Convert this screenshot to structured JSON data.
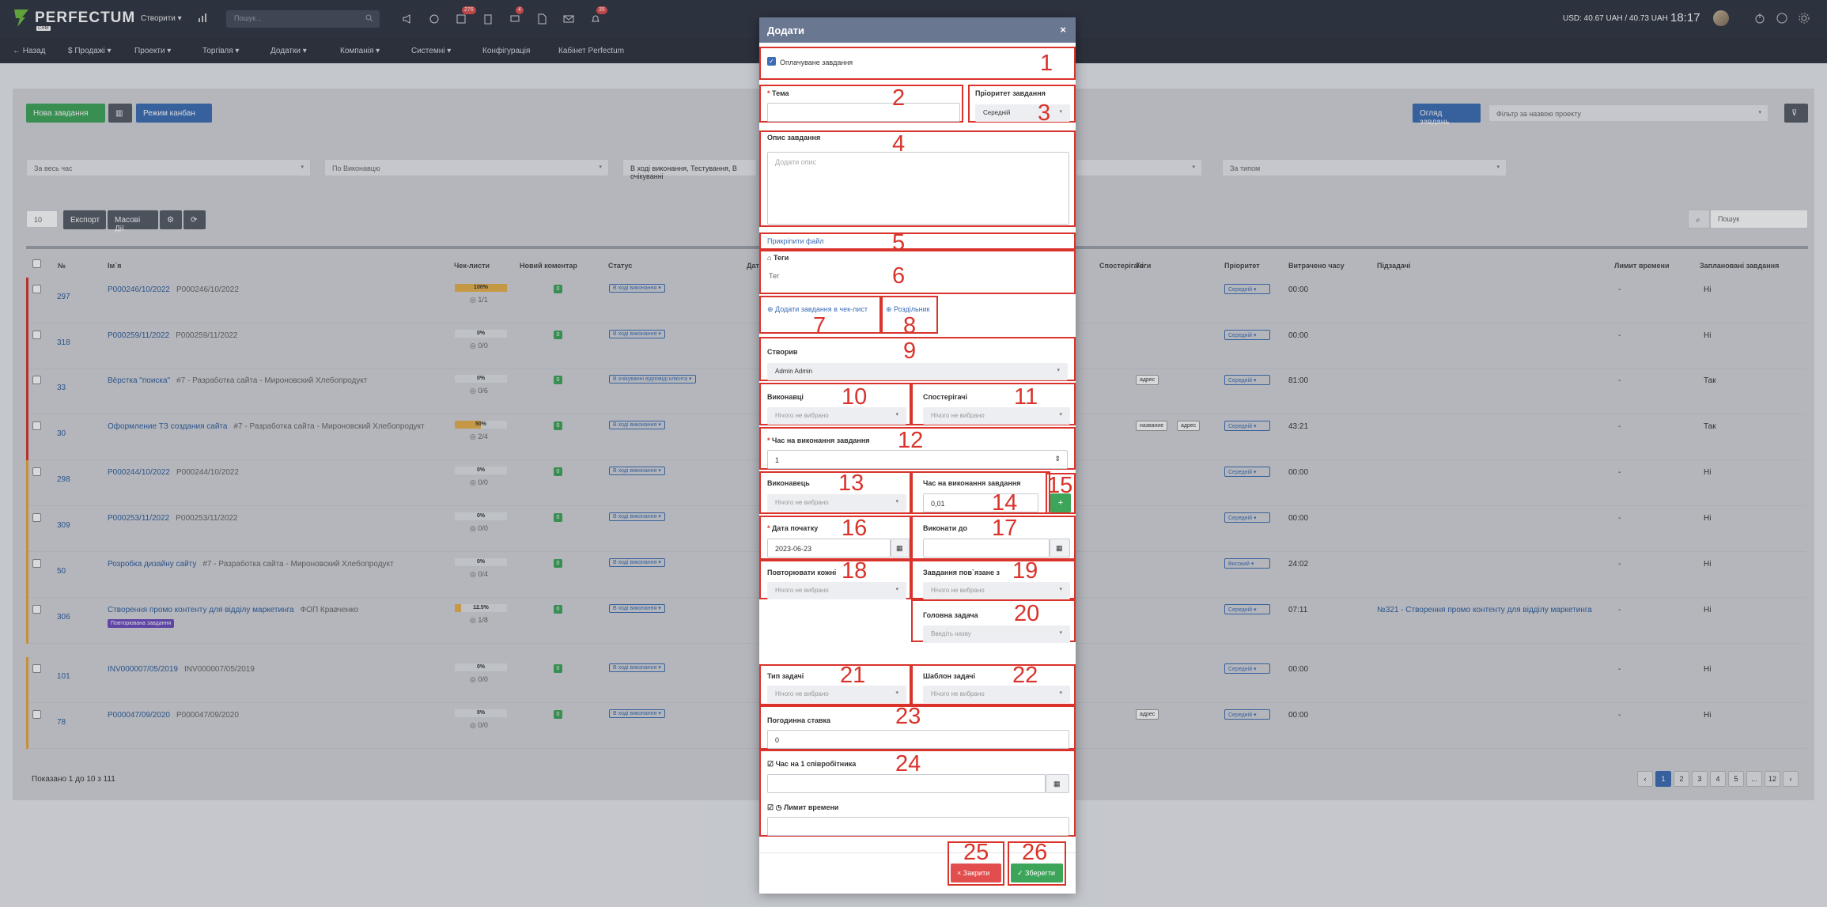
{
  "topbar": {
    "logo": "PERFECTUM",
    "logo_sub": "CRM",
    "create": "Створити ▾",
    "search_placeholder": "Пошук...",
    "badges": [
      "276",
      "4",
      "35"
    ],
    "currency": "USD: 40.67 UAH / 40.73 UAH",
    "clock": "18:17"
  },
  "nav": {
    "back": "← Назад",
    "items": [
      "$ Продажі ▾",
      "Проекти ▾",
      "Торгівля ▾",
      "Додатки ▾",
      "Компанія ▾",
      "Системні ▾",
      "Конфігурація",
      "Кабінет Perfectum"
    ]
  },
  "toolbar": {
    "new_task": "Нова завдання",
    "kanban": "Режим канбан",
    "overview": "Огляд завдань",
    "project_filter": "Фільтр за назвою проекту"
  },
  "filters": [
    "За весь час",
    "По Виконавцю",
    "В ході виконання, Тестування, В очікуванні",
    "За типом"
  ],
  "table_controls": {
    "per_page": "10",
    "export": "Експорт",
    "mass": "Масові Дії",
    "search": "Пошук"
  },
  "columns": [
    "№",
    "Ім`я",
    "Чек-листи",
    "Новий коментар",
    "Статус",
    "Дата",
    "Спостерігачі",
    "Теги",
    "Пріоритет",
    "Витрачено часу",
    "Підзадачі",
    "Лимит времени",
    "Заплановані завдання"
  ],
  "rows": [
    {
      "num": "297",
      "name": "P000246/10/2022",
      "sub": "P000246/10/2022",
      "progress": "100%",
      "check": "1/1",
      "status": "В ході виконання",
      "priority": "Середній",
      "spent": "00:00",
      "limit": "-",
      "planned": "Ні",
      "color": "#d9332b"
    },
    {
      "num": "318",
      "name": "P000259/11/2022",
      "sub": "P000259/11/2022",
      "progress": "0%",
      "check": "0/0",
      "status": "В ході виконання",
      "priority": "Середній",
      "spent": "00:00",
      "limit": "-",
      "planned": "Ні",
      "color": "#d9332b"
    },
    {
      "num": "33",
      "name": "Вёрстка \"поиска\"",
      "sub": "#7 - Разработка сайта - Мироновский Хлебопродукт",
      "progress": "0%",
      "check": "0/6",
      "status": "В очікуванні відповіді клієнта",
      "priority": "Середній",
      "spent": "81:00",
      "limit": "-",
      "planned": "Так",
      "color": "#d9332b",
      "tags": [
        "адрес"
      ]
    },
    {
      "num": "30",
      "name": "Оформление ТЗ создания сайта",
      "sub": "#7 - Разработка сайта - Мироновский Хлебопродукт",
      "progress": "50%",
      "check": "2/4",
      "status": "В ході виконання",
      "priority": "Середній",
      "spent": "43:21",
      "limit": "-",
      "planned": "Так",
      "color": "#d9332b",
      "tags": [
        "название",
        "адрес"
      ]
    },
    {
      "num": "298",
      "name": "P000244/10/2022",
      "sub": "P000244/10/2022",
      "progress": "0%",
      "check": "0/0",
      "status": "В ході виконання",
      "priority": "Середній",
      "spent": "00:00",
      "limit": "-",
      "planned": "Ні",
      "color": "#e8a640"
    },
    {
      "num": "309",
      "name": "P000253/11/2022",
      "sub": "P000253/11/2022",
      "progress": "0%",
      "check": "0/0",
      "status": "В ході виконання",
      "priority": "Середній",
      "spent": "00:00",
      "limit": "-",
      "planned": "Ні",
      "color": "#e8a640"
    },
    {
      "num": "50",
      "name": "Розробка дизайну сайту",
      "sub": "#7 - Разработка сайта - Мироновский Хлебопродукт",
      "progress": "0%",
      "check": "0/4",
      "status": "В ході виконання",
      "priority": "Високий",
      "spent": "24:02",
      "limit": "-",
      "planned": "Ні",
      "color": "#e8a640"
    },
    {
      "num": "306",
      "name": "Створення промо контенту для відділу маркетинга",
      "sub": "ФОП Кравченко",
      "progress": "12.5%",
      "check": "1/8",
      "status": "В ході виконання",
      "priority": "Середній",
      "spent": "07:11",
      "limit": "-",
      "planned": "Ні",
      "color": "#e8a640",
      "subtask": "№321 - Створення промо контенту для відділу маркетинга",
      "repeat": "Повторювана завдання"
    },
    {
      "num": "101",
      "name": "INV000007/05/2019",
      "sub": "INV000007/05/2019",
      "progress": "0%",
      "check": "0/0",
      "status": "В ході виконання",
      "priority": "Середній",
      "spent": "00:00",
      "limit": "-",
      "planned": "Ні",
      "color": "#e8a640"
    },
    {
      "num": "78",
      "name": "P000047/09/2020",
      "sub": "P000047/09/2020",
      "progress": "0%",
      "check": "0/0",
      "status": "В ході виконання",
      "priority": "Середній",
      "spent": "00:00",
      "limit": "-",
      "planned": "Ні",
      "color": "#e8a640",
      "tags": [
        "адрес"
      ]
    }
  ],
  "footer": {
    "info": "Показано 1 до 10 з 111",
    "pages": [
      "‹",
      "1",
      "2",
      "3",
      "4",
      "5",
      "...",
      "12",
      "›"
    ]
  },
  "modal": {
    "title": "Додати",
    "paid": "Оплачуване завдання",
    "subject_label": "Тема",
    "priority_label": "Пріоритет завдання",
    "priority_value": "Середній",
    "desc_label": "Опис завдання",
    "desc_placeholder": "Додати опис",
    "attach": "Прикріпити файл",
    "tags_label": "Теги",
    "tags_placeholder": "Тег",
    "add_checklist": "Додати завдання в чек-лист",
    "separator": "Роздільник",
    "creator_label": "Створив",
    "creator_value": "Admin Admin",
    "executors_label": "Виконавці",
    "observers_label": "Спостерігачі",
    "nothing": "Нічого не вибрано",
    "time_label": "Час на виконання завдання",
    "time_value": "1",
    "executor_label": "Виконавець",
    "exec_time_label": "Час на виконання завдання",
    "exec_time_value": "0,01",
    "start_label": "Дата початку",
    "start_value": "2023-06-23",
    "due_label": "Виконати до",
    "repeat_label": "Повторювати кожні",
    "linked_label": "Завдання пов`язане з",
    "main_label": "Головна задача",
    "main_placeholder": "Введіть назву",
    "type_label": "Тип задачі",
    "template_label": "Шаблон задачі",
    "rate_label": "Погодинна ставка",
    "rate_value": "0",
    "per_emp_label": "Час на 1 співробітника",
    "limit_label": "Лимит времени",
    "close": "× Закрити",
    "save": "✓ Зберегти",
    "callouts": [
      "1",
      "2",
      "3",
      "4",
      "5",
      "6",
      "7",
      "8",
      "9",
      "10",
      "11",
      "12",
      "13",
      "14",
      "15",
      "16",
      "17",
      "18",
      "19",
      "20",
      "21",
      "22",
      "23",
      "24",
      "25",
      "26"
    ]
  }
}
